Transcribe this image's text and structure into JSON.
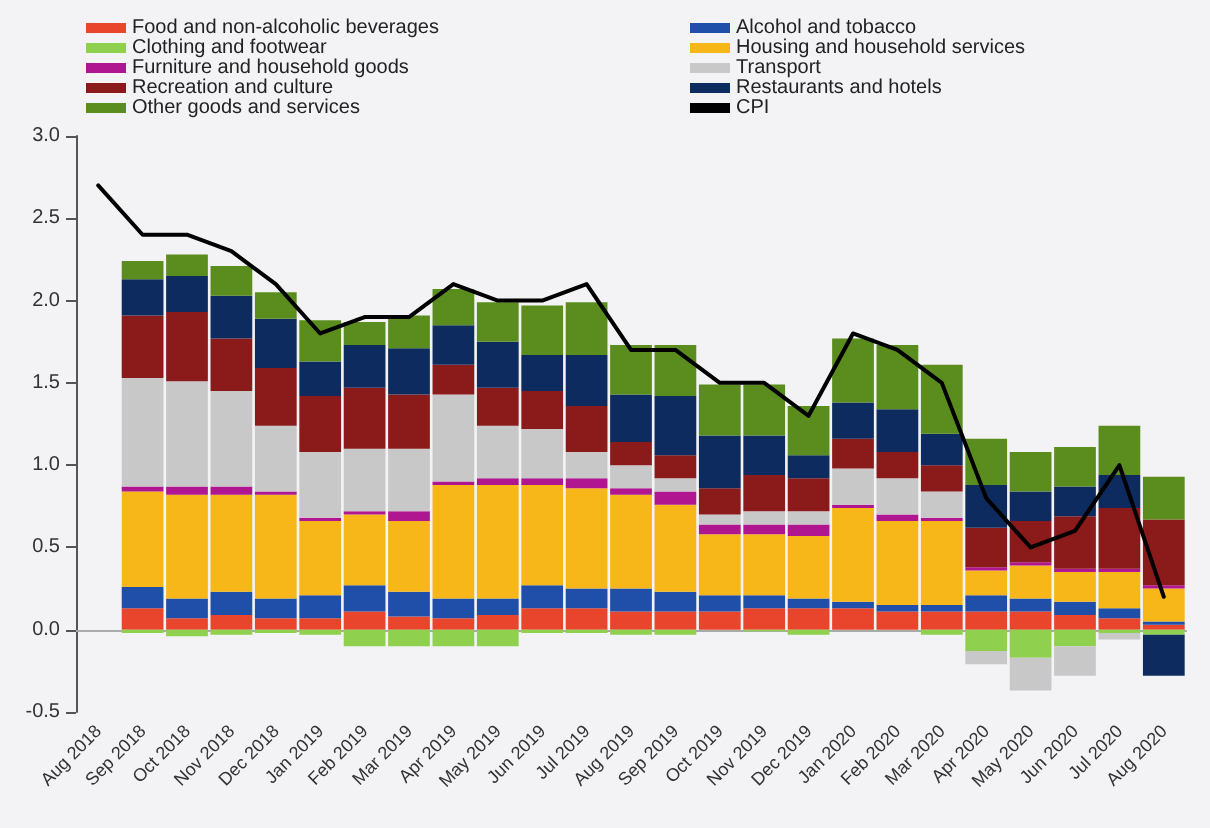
{
  "chart_data": {
    "type": "bar",
    "stacked": true,
    "legend": "top",
    "marker": "none",
    "line_style": "solid",
    "categories": [
      "Aug 2018",
      "Sep 2018",
      "Oct 2018",
      "Nov 2018",
      "Dec 2018",
      "Jan 2019",
      "Feb 2019",
      "Mar 2019",
      "Apr 2019",
      "May 2019",
      "Jun 2019",
      "Jul 2019",
      "Aug 2019",
      "Sep 2019",
      "Oct 2019",
      "Nov 2019",
      "Dec 2019",
      "Jan 2020",
      "Feb 2020",
      "Mar 2020",
      "Apr 2020",
      "May 2020",
      "Jun 2020",
      "Jul 2020",
      "Aug 2020"
    ],
    "ylim": [
      -0.5,
      3.0
    ],
    "yticks": [
      -0.5,
      {
        "value": 0,
        "label": "0.0"
      },
      0.5,
      {
        "value": 1,
        "label": "1.0"
      },
      1.5,
      {
        "value": 2,
        "label": "2.0"
      },
      2.5,
      {
        "value": 3,
        "label": "3.0"
      }
    ],
    "series": [
      {
        "name": "Food and non-alcoholic beverages",
        "color": "#e8452c",
        "values": [
          null,
          0.13,
          0.07,
          0.09,
          0.07,
          0.07,
          0.11,
          0.08,
          0.07,
          0.09,
          0.13,
          0.13,
          0.11,
          0.11,
          0.11,
          0.13,
          0.13,
          0.13,
          0.11,
          0.11,
          0.11,
          0.11,
          0.09,
          0.07,
          0.03
        ]
      },
      {
        "name": "Alcohol and tobacco",
        "color": "#1f4fa8",
        "values": [
          null,
          0.13,
          0.12,
          0.14,
          0.12,
          0.14,
          0.16,
          0.15,
          0.12,
          0.1,
          0.14,
          0.12,
          0.14,
          0.12,
          0.1,
          0.08,
          0.06,
          0.04,
          0.04,
          0.04,
          0.1,
          0.08,
          0.08,
          0.06,
          0.02
        ]
      },
      {
        "name": "Clothing and footwear",
        "color": "#8fd14f",
        "values": [
          null,
          -0.02,
          -0.04,
          -0.03,
          -0.02,
          -0.03,
          -0.1,
          -0.1,
          -0.1,
          -0.1,
          -0.02,
          -0.02,
          -0.03,
          -0.03,
          0,
          -0.01,
          -0.03,
          0,
          0,
          -0.03,
          -0.13,
          -0.17,
          -0.1,
          -0.02,
          -0.03
        ]
      },
      {
        "name": "Housing and household services",
        "color": "#f7b718",
        "values": [
          null,
          0.58,
          0.63,
          0.59,
          0.63,
          0.45,
          0.43,
          0.43,
          0.69,
          0.69,
          0.61,
          0.61,
          0.57,
          0.53,
          0.37,
          0.37,
          0.38,
          0.57,
          0.51,
          0.51,
          0.15,
          0.2,
          0.18,
          0.22,
          0.2
        ]
      },
      {
        "name": "Furniture and household goods",
        "color": "#b0168f",
        "values": [
          null,
          0.03,
          0.05,
          0.05,
          0.02,
          0.02,
          0.02,
          0.06,
          0.02,
          0.04,
          0.04,
          0.06,
          0.04,
          0.08,
          0.06,
          0.06,
          0.07,
          0.02,
          0.04,
          0.02,
          0.02,
          0.02,
          0.02,
          0.02,
          0.02
        ]
      },
      {
        "name": "Transport",
        "color": "#c8c8c8",
        "values": [
          null,
          0.66,
          0.64,
          0.58,
          0.4,
          0.4,
          0.38,
          0.38,
          0.53,
          0.32,
          0.3,
          0.16,
          0.14,
          0.08,
          0.06,
          0.08,
          0.08,
          0.22,
          0.22,
          0.16,
          -0.08,
          -0.2,
          -0.18,
          -0.04,
          null
        ]
      },
      {
        "name": "Recreation and culture",
        "color": "#8b1a1a",
        "values": [
          null,
          0.38,
          0.42,
          0.32,
          0.35,
          0.34,
          0.37,
          0.33,
          0.18,
          0.23,
          0.23,
          0.28,
          0.14,
          0.14,
          0.16,
          0.22,
          0.2,
          0.18,
          0.16,
          0.16,
          0.24,
          0.25,
          0.32,
          0.37,
          0.4
        ]
      },
      {
        "name": "Restaurants and hotels",
        "color": "#0d2b5e",
        "values": [
          null,
          0.22,
          0.22,
          0.26,
          0.3,
          0.21,
          0.26,
          0.28,
          0.24,
          0.28,
          0.22,
          0.31,
          0.29,
          0.36,
          0.32,
          0.24,
          0.14,
          0.22,
          0.26,
          0.19,
          0.26,
          0.18,
          0.18,
          0.2,
          -0.25
        ]
      },
      {
        "name": "Other goods and services",
        "color": "#5b8c1e",
        "values": [
          null,
          0.11,
          0.13,
          0.18,
          0.16,
          0.25,
          0.14,
          0.2,
          0.22,
          0.24,
          0.3,
          0.32,
          0.3,
          0.31,
          0.31,
          0.31,
          0.3,
          0.39,
          0.39,
          0.42,
          0.28,
          0.24,
          0.24,
          0.3,
          0.26
        ]
      },
      {
        "name": "CPI",
        "type": "line",
        "color": "#000000",
        "values": [
          2.7,
          2.4,
          2.4,
          2.3,
          2.1,
          1.8,
          1.9,
          1.9,
          2.1,
          2.0,
          2.0,
          2.1,
          1.7,
          1.7,
          1.5,
          1.5,
          1.3,
          1.8,
          1.7,
          1.5,
          0.8,
          0.5,
          0.6,
          1.0,
          0.2
        ]
      }
    ]
  }
}
